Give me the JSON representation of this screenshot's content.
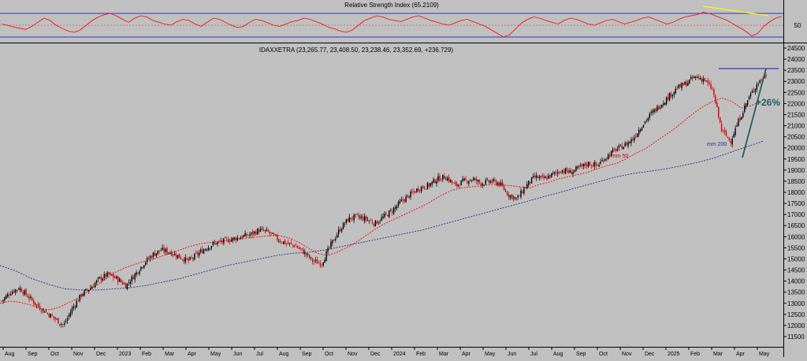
{
  "rsi_panel": {
    "title": "Relative Strength Index (65.2109)",
    "level_label": "50"
  },
  "price_panel": {
    "title": "IDAXXETRA (23,265.77, 23,408.50, 23,238.46, 23,352.69, +236.729)"
  },
  "annotations": {
    "ma50": "mm 50",
    "ma200": "mm 200",
    "gain": "+26%"
  },
  "colors": {
    "background": "#c0c0c0",
    "rsi_line": "#ff0000",
    "rsi_band": "#3333cc",
    "ma50": "#ff0000",
    "ma200": "#2a2a8c",
    "up_candle": "#000000",
    "down_candle": "#d40000",
    "trend_line": "#1f5f5f",
    "resistance": "#3333cc",
    "rsi_trend": "#ffff00"
  },
  "chart_data": [
    {
      "type": "line",
      "title": "Relative Strength Index (65.2109)",
      "ylim": [
        0,
        100
      ],
      "levels": [
        30,
        50,
        70
      ],
      "series": [
        {
          "values": [
            52,
            50,
            47,
            45,
            43,
            48,
            55,
            62,
            58,
            50,
            45,
            40,
            38,
            42,
            50,
            58,
            64,
            68,
            70,
            66,
            60,
            55,
            62,
            66,
            64,
            58,
            55,
            52,
            50,
            56,
            60,
            58,
            52,
            48,
            55,
            62,
            60,
            55,
            50,
            46,
            48,
            55,
            60,
            58,
            54,
            50,
            48,
            52,
            56,
            58,
            62,
            60,
            56,
            52,
            47,
            44,
            40,
            38,
            42,
            50,
            58,
            62,
            66,
            64,
            60,
            58,
            56,
            60,
            64,
            66,
            62,
            58,
            55,
            52,
            50,
            54,
            58,
            60,
            56,
            52,
            48,
            42,
            36,
            30,
            34,
            44,
            54,
            60,
            64,
            62,
            58,
            55,
            52,
            58,
            62,
            60,
            56,
            52,
            50,
            54,
            58,
            60,
            56,
            52,
            55,
            58,
            62,
            64,
            60,
            56,
            52,
            55,
            60,
            64,
            66,
            68,
            72,
            70,
            66,
            62,
            58,
            52,
            46,
            40,
            32,
            36,
            48,
            56,
            62,
            65
          ]
        }
      ],
      "trendline": {
        "from_date": "2025-02",
        "to_date": "2025-05"
      }
    },
    {
      "type": "candlestick",
      "title": "IDAXXETRA (23,265.77, 23,408.50, 23,238.46, 23,352.69, +236.729)",
      "ylim": [
        11000,
        24500
      ],
      "yticks": [
        11500,
        12000,
        12500,
        13000,
        13500,
        14000,
        14500,
        15000,
        15500,
        16000,
        16500,
        17000,
        17500,
        18000,
        18500,
        19000,
        19500,
        20000,
        20500,
        21000,
        21500,
        22000,
        22500,
        23000,
        23500,
        24000,
        24500
      ],
      "xticks": [
        "Aug",
        "Sep",
        "Oct",
        "Nov",
        "Dec",
        "2023",
        "Feb",
        "Mar",
        "Apr",
        "May",
        "Jun",
        "Jul",
        "Aug",
        "Sep",
        "Oct",
        "Nov",
        "Dec",
        "2024",
        "Feb",
        "Mar",
        "Apr",
        "May",
        "Jun",
        "Jul",
        "Aug",
        "Sep",
        "Oct",
        "Nov",
        "Dec",
        "2025",
        "Feb",
        "Mar",
        "Apr",
        "May"
      ],
      "series": [
        {
          "name": "close",
          "values": [
            13100,
            13500,
            13700,
            13300,
            12900,
            12600,
            12300,
            12000,
            12800,
            13400,
            13700,
            14100,
            14300,
            14100,
            13800,
            14300,
            14800,
            15200,
            15400,
            15300,
            15100,
            14900,
            15200,
            15500,
            15700,
            15800,
            15900,
            16000,
            16100,
            16300,
            16200,
            15900,
            15700,
            15600,
            15300,
            14900,
            14800,
            15600,
            16300,
            16800,
            16900,
            16800,
            16600,
            16900,
            17200,
            17600,
            17900,
            18200,
            18300,
            18600,
            18700,
            18300,
            18500,
            18600,
            18400,
            18500,
            18400,
            17900,
            17700,
            18300,
            18700,
            18600,
            18800,
            19000,
            18900,
            19100,
            19300,
            19200,
            19600,
            19900,
            20100,
            20400,
            21000,
            21500,
            21900,
            22300,
            22700,
            22900,
            23200,
            23100,
            22600,
            20800,
            20300,
            21300,
            22200,
            22900,
            23300
          ]
        },
        {
          "name": "mm 50",
          "values": [
            13000,
            13100,
            13050,
            12950,
            12800,
            12700,
            12800,
            13000,
            13200,
            13500,
            13800,
            14100,
            14400,
            14600,
            14750,
            14900,
            15000,
            15150,
            15300,
            15450,
            15600,
            15700,
            15750,
            15800,
            15850,
            15900,
            15950,
            16000,
            16050,
            16050,
            15950,
            15750,
            15500,
            15250,
            15150,
            15300,
            15500,
            15750,
            16050,
            16350,
            16600,
            16800,
            17000,
            17200,
            17400,
            17650,
            17900,
            18100,
            18200,
            18250,
            18300,
            18350,
            18350,
            18300,
            18250,
            18200,
            18350,
            18450,
            18600,
            18700,
            18800,
            18900,
            19050,
            19200,
            19300,
            19500,
            19750,
            19950,
            20250,
            20550,
            20850,
            21200,
            21550,
            21850,
            22100,
            22250,
            22100,
            21800,
            21900,
            22100
          ]
        },
        {
          "name": "mm 200",
          "values": [
            14700,
            14450,
            14100,
            13850,
            13650,
            13600,
            13600,
            13650,
            13700,
            13800,
            13950,
            14100,
            14300,
            14500,
            14700,
            14850,
            15000,
            15150,
            15250,
            15300,
            15400,
            15550,
            15700,
            15850,
            16000,
            16150,
            16300,
            16500,
            16700,
            16900,
            17100,
            17300,
            17500,
            17700,
            17900,
            18100,
            18300,
            18500,
            18700,
            18850,
            18950,
            19050,
            19200,
            19350,
            19550,
            19800,
            20050,
            20300
          ]
        }
      ],
      "annotations": [
        "mm 50",
        "mm 200",
        "+26%"
      ],
      "resistance_level": 23500,
      "trendline": {
        "from_value": 18400,
        "to_value": 23500
      }
    }
  ]
}
